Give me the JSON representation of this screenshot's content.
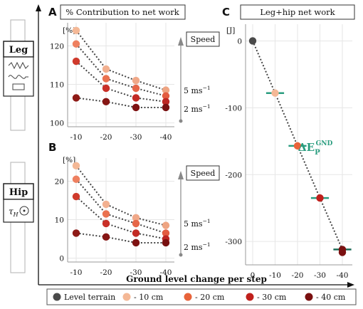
{
  "panels": {
    "A": {
      "letter": "A",
      "title": "% Contribution to net work",
      "unit": "[%]"
    },
    "B": {
      "letter": "B",
      "title": "",
      "unit": "[%]"
    },
    "C": {
      "letter": "C",
      "title": "Leg+hip net work",
      "unit": "[J]"
    }
  },
  "side": {
    "leg_label": "Leg",
    "hip_label": "Hip",
    "tau_label": "τ",
    "tau_sub": "H"
  },
  "speed": {
    "label": "Speed",
    "high": "5 ms",
    "low": "2 ms",
    "exponent": "−1"
  },
  "annotation": {
    "main": "ΔE",
    "sub": "P",
    "sup": "GND"
  },
  "xlabel": "Ground level change per step",
  "legend": [
    {
      "label": "Level terrain",
      "color": "#4a4a4a"
    },
    {
      "label": "- 10 cm",
      "color": "#f4b896"
    },
    {
      "label": "- 20 cm",
      "color": "#e8633a"
    },
    {
      "label": "- 30 cm",
      "color": "#c0201c"
    },
    {
      "label": "- 40 cm",
      "color": "#7a1010"
    }
  ],
  "colors": {
    "first": [
      "#f4b896",
      "#f2b090",
      "#f0a888",
      "#eea482"
    ],
    "second": [
      "#ee8060",
      "#ea7250",
      "#e66648",
      "#e35c40"
    ],
    "third": [
      "#cf3a2c",
      "#c93028",
      "#c22a24",
      "#bd2622"
    ],
    "fourth": [
      "#8e1a16",
      "#861614",
      "#7e1212",
      "#781010"
    ],
    "error_bar": "#2a9d7f",
    "error_bar_dark": "#1d6b56"
  },
  "chart_data": [
    {
      "id": "A",
      "type": "line",
      "title": "% Contribution to net work",
      "ylabel": "[%]",
      "categories": [
        "-10",
        "-20",
        "-30",
        "-40"
      ],
      "ylim": [
        99,
        126
      ],
      "yticks": [
        100,
        110,
        120
      ],
      "series": [
        {
          "values": [
            124,
            114,
            111,
            108.5
          ]
        },
        {
          "values": [
            120.5,
            111.5,
            109,
            107
          ]
        },
        {
          "values": [
            116,
            109,
            106.5,
            105.5
          ]
        },
        {
          "values": [
            106.5,
            105.5,
            104,
            104
          ]
        }
      ]
    },
    {
      "id": "B",
      "type": "line",
      "title": "",
      "ylabel": "[%]",
      "categories": [
        "-10",
        "-20",
        "-30",
        "-40"
      ],
      "ylim": [
        -1,
        26
      ],
      "yticks": [
        0,
        10,
        20
      ],
      "series": [
        {
          "values": [
            24,
            14,
            10.5,
            8.5
          ]
        },
        {
          "values": [
            20.5,
            11.5,
            9,
            6.5
          ]
        },
        {
          "values": [
            16,
            9,
            6.5,
            5
          ]
        },
        {
          "values": [
            6.5,
            5.5,
            4,
            4
          ]
        }
      ]
    },
    {
      "id": "C",
      "type": "scatter",
      "title": "Leg+hip net work",
      "ylabel": "[J]",
      "categories": [
        "0",
        "-10",
        "-20",
        "-30",
        "-40"
      ],
      "ylim": [
        -335,
        25
      ],
      "yticks": [
        0,
        -100,
        -200,
        -300
      ],
      "values": [
        0,
        -78,
        -157,
        -235,
        -312
      ],
      "xerr": [
        0,
        4,
        4,
        4,
        4
      ]
    }
  ]
}
